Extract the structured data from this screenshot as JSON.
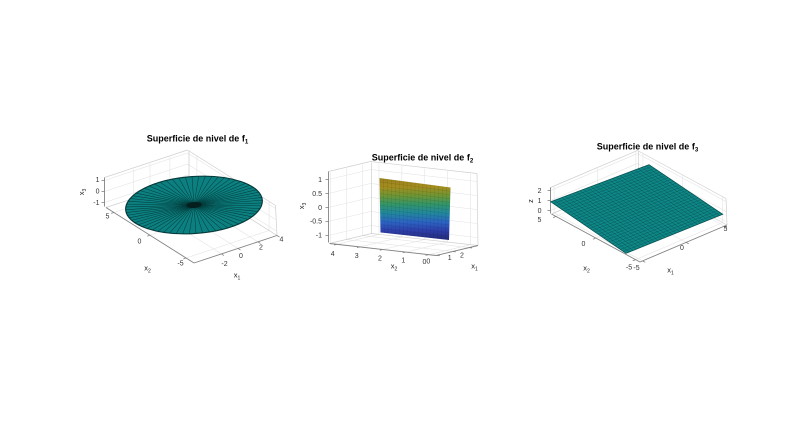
{
  "figure": {
    "kind": "matlab-style figure",
    "layout": "1x3 subplots",
    "background": "#ffffff"
  },
  "style": {
    "axis_color": "#828282",
    "box_color": "#cfcfcf",
    "grid_color": "#e4e4e4",
    "tick_label_color": "#333333",
    "title_color": "#000000"
  },
  "chart_data": [
    {
      "type": "surface",
      "title": "Superficie de nivel de f",
      "title_sub": "1",
      "axes": {
        "x1": {
          "label": "x",
          "label_sub": "1",
          "ticks": [
            "-2",
            "0",
            "2",
            "4"
          ]
        },
        "x2": {
          "label": "x",
          "label_sub": "2",
          "ticks": [
            "5",
            "0",
            "-5"
          ]
        },
        "z": {
          "label": "x",
          "label_sub": "3",
          "ticks": [
            "1",
            "0",
            "-1"
          ]
        }
      },
      "surface": {
        "shape": "elliptical-disk",
        "description": "Flat teal elliptical disk at x3=0 (semi-axes ~3 in x1, ~5 in x2) rendered with dense radial mesh converging to a dark center",
        "fill": "#0c8080",
        "edge": "#053939",
        "mesh": "rgba(2,40,40,0.75)",
        "center_color": "#051f1f"
      }
    },
    {
      "type": "surface",
      "title": "Superficie de nivel de f",
      "title_sub": "2",
      "axes": {
        "x1": {
          "label": "x",
          "label_sub": "1",
          "ticks": [
            "0",
            "1",
            "2"
          ]
        },
        "x2": {
          "label": "x",
          "label_sub": "2",
          "ticks": [
            "4",
            "3",
            "2",
            "1",
            "0"
          ]
        },
        "z": {
          "label": "x",
          "label_sub": "3",
          "ticks": [
            "1",
            "0.5",
            "0",
            "-0.5",
            "-1"
          ]
        }
      },
      "surface": {
        "shape": "vertical-plane",
        "description": "Vertical plane spanning x3 in [-1,1], faceted, colored with parula colormap (dark yellow top to dark blue bottom)",
        "gradient": [
          "#97801d",
          "#a58d1e",
          "#6e9635",
          "#31966b",
          "#21879f",
          "#2c63c4",
          "#2d3da8",
          "#232a75"
        ],
        "mesh": "rgba(0,0,0,0.13)"
      }
    },
    {
      "type": "surface",
      "title": "Superficie de nivel de f",
      "title_sub": "3",
      "axes": {
        "x1": {
          "label": "x",
          "label_sub": "1",
          "ticks": [
            "-5",
            "0",
            "5"
          ]
        },
        "x2": {
          "label": "x",
          "label_sub": "2",
          "ticks": [
            "5",
            "0",
            "-5"
          ]
        },
        "z": {
          "label": "z",
          "label_sub": "",
          "ticks": [
            "2",
            "1",
            "0"
          ]
        }
      },
      "surface": {
        "shape": "horizontal-plane",
        "description": "Flat teal plane at z=1 over x1,x2 in [-5,5] with fine square mesh",
        "fill": "#0f8787",
        "edge": "#0a5555",
        "mesh": "rgba(2,45,45,0.5)"
      }
    }
  ]
}
